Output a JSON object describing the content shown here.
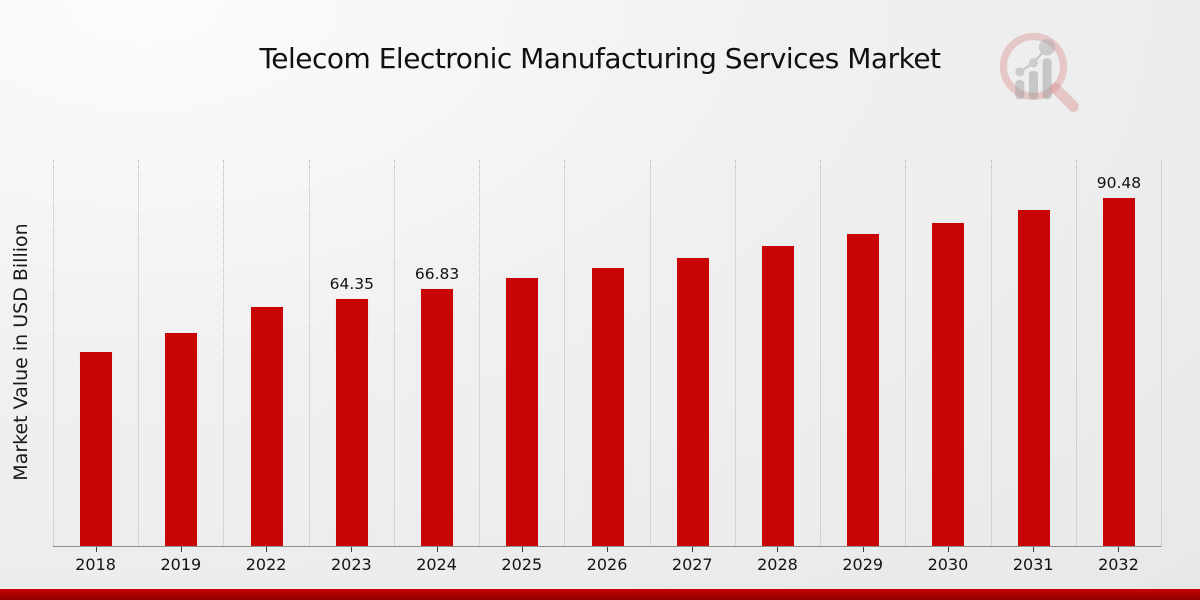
{
  "chart_data": {
    "type": "bar",
    "title": "Telecom Electronic Manufacturing Services Market",
    "xlabel": "",
    "ylabel": "Market Value in USD Billion",
    "categories": [
      "2018",
      "2019",
      "2022",
      "2023",
      "2024",
      "2025",
      "2026",
      "2027",
      "2028",
      "2029",
      "2030",
      "2031",
      "2032"
    ],
    "values": [
      50.5,
      55.4,
      62.1,
      64.35,
      66.83,
      69.6,
      72.2,
      75.0,
      78.0,
      81.0,
      84.0,
      87.4,
      90.48
    ],
    "data_labels": {
      "2023": "64.35",
      "2024": "66.83",
      "2032": "90.48"
    },
    "ylim": [
      0,
      100
    ],
    "y_ticks_visible": false,
    "grid": "vertical-dotted-category-separators",
    "legend": "none",
    "bar_color": "#c90404"
  },
  "colors": {
    "bar": "#c90404",
    "footer_strip_top": "#c90303",
    "footer_strip_bottom": "#8e0000",
    "grid_line": "#b9b9b9",
    "axis_line": "#8f8f8f",
    "text": "#111111",
    "background": "#ededed"
  },
  "logo": {
    "name": "market-research-future-watermark",
    "description": "faded magnifying glass with rising bar chart"
  }
}
